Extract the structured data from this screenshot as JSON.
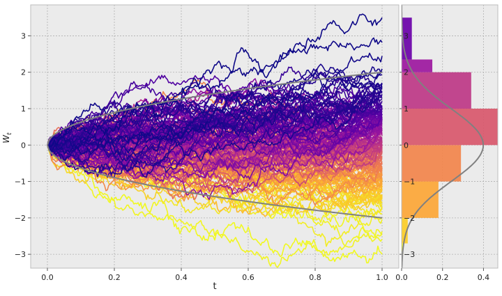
{
  "chart_data": [
    {
      "type": "line",
      "title": "",
      "xlabel": "t",
      "ylabel": "W_t",
      "xlim": [
        -0.05,
        1.05
      ],
      "ylim": [
        -3.38,
        3.85
      ],
      "x_ticks": [
        0.0,
        0.2,
        0.4,
        0.6,
        0.8,
        1.0
      ],
      "x_tick_labels": [
        "0.0",
        "0.2",
        "0.4",
        "0.6",
        "0.8",
        "1.0"
      ],
      "y_ticks": [
        -3,
        -2,
        -1,
        0,
        1,
        2,
        3
      ],
      "y_tick_labels": [
        "−3",
        "−2",
        "−1",
        "0",
        "1",
        "2",
        "3"
      ],
      "grid": true,
      "n_paths": 200,
      "path_colors_ranked": [
        "#0d0887",
        "#5c01a6",
        "#9c179e",
        "#cc4778",
        "#ed7953",
        "#fdb42f",
        "#f0f921"
      ],
      "reference_curves": [
        {
          "expression": "2*sqrt(t)",
          "color": "#808080"
        },
        {
          "expression": "-2*sqrt(t)",
          "color": "#808080"
        }
      ],
      "highlighted_extremes": {
        "max_final": 3.5,
        "min_final": -3.0
      }
    },
    {
      "type": "bar",
      "orientation": "horizontal",
      "bin_edges": [
        -3.0,
        -2.7,
        -2.0,
        -1.0,
        0.0,
        1.0,
        2.0,
        2.35,
        3.5
      ],
      "values": [
        0.008,
        0.03,
        0.18,
        0.29,
        0.47,
        0.34,
        0.15,
        0.05
      ],
      "colors": [
        "#f0f921",
        "#fccd25",
        "#fca636",
        "#f2844b",
        "#d8576b",
        "#bd3786",
        "#9c179e",
        "#6a00a8"
      ],
      "pdf_curve": {
        "expression": "normal_pdf(0, 1)",
        "color": "#808080"
      },
      "xlim": [
        0.0,
        0.47
      ],
      "x_ticks": [
        0.0,
        0.2,
        0.4
      ],
      "x_tick_labels": [
        "0.0",
        "0.2",
        "0.4"
      ],
      "ylim": [
        -3.38,
        3.85
      ],
      "y_ticks": [
        -3,
        -2,
        -1,
        0,
        1,
        2,
        3
      ],
      "y_tick_labels": [
        "−3",
        "−2",
        "−1",
        "0",
        "1",
        "2",
        "3"
      ],
      "grid": true
    }
  ]
}
